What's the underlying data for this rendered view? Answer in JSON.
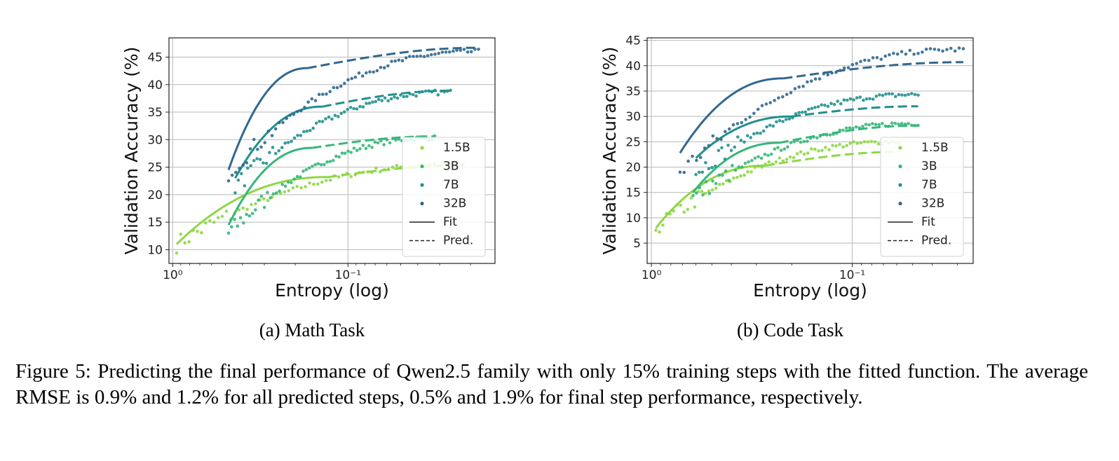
{
  "figure": {
    "caption": "Figure 5: Predicting the final performance of Qwen2.5 family with only 15% training steps with the fitted function. The average RMSE is 0.9% and 1.2% for all predicted steps, 0.5% and 1.9% for final step performance, respectively."
  },
  "colors": {
    "1.5B": "#8fd744",
    "3B": "#35b779",
    "7B": "#21908d",
    "32B": "#31688e"
  },
  "chart_data": [
    {
      "type": "scatter",
      "subtitle": "(a) Math Task",
      "xlabel": "Entropy (log)",
      "ylabel": "Validation Accuracy (%)",
      "x_scale": "log",
      "x_inverted": true,
      "xlim": [
        1.05,
        0.0145
      ],
      "ylim": [
        7.5,
        48.5
      ],
      "x_ticks": [
        {
          "value": 1,
          "label": "10⁰"
        },
        {
          "value": 0.1,
          "label": "10⁻¹"
        }
      ],
      "y_ticks": [
        10,
        15,
        20,
        25,
        30,
        35,
        40,
        45
      ],
      "grid": true,
      "legend": {
        "placement": "lower-right",
        "entries": [
          "1.5B",
          "3B",
          "7B",
          "32B",
          "Fit",
          "Pred."
        ]
      },
      "series": [
        {
          "name": "1.5B",
          "fit": {
            "x_range": [
              0.95,
              0.13
            ],
            "y": [
              11,
              23.2
            ]
          },
          "pred": {
            "x_range": [
              0.13,
              0.022
            ],
            "y": [
              23.2,
              25.3
            ]
          },
          "points_x_range": [
            0.95,
            0.022
          ],
          "points_y": [
            11,
            25.5
          ]
        },
        {
          "name": "3B",
          "fit": {
            "x_range": [
              0.48,
              0.16
            ],
            "y": [
              14.5,
              28.5
            ]
          },
          "pred": {
            "x_range": [
              0.16,
              0.032
            ],
            "y": [
              28.5,
              30.6
            ]
          },
          "points_x_range": [
            0.48,
            0.032
          ],
          "points_y": [
            13,
            30.3
          ]
        },
        {
          "name": "7B",
          "fit": {
            "x_range": [
              0.44,
              0.14
            ],
            "y": [
              23,
              36
            ]
          },
          "pred": {
            "x_range": [
              0.14,
              0.026
            ],
            "y": [
              36,
              38.9
            ]
          },
          "points_x_range": [
            0.44,
            0.026
          ],
          "points_y": [
            21.5,
            38.6
          ]
        },
        {
          "name": "32B",
          "fit": {
            "x_range": [
              0.48,
              0.17
            ],
            "y": [
              24.5,
              43
            ]
          },
          "pred": {
            "x_range": [
              0.17,
              0.018
            ],
            "y": [
              43,
              46.7
            ]
          },
          "points_x_range": [
            0.48,
            0.018
          ],
          "points_y": [
            24,
            46
          ]
        }
      ]
    },
    {
      "type": "scatter",
      "subtitle": "(b) Code Task",
      "xlabel": "Entropy (log)",
      "ylabel": "Validation Accuracy (%)",
      "x_scale": "log",
      "x_inverted": true,
      "xlim": [
        1.05,
        0.025
      ],
      "ylim": [
        1,
        45.5
      ],
      "x_ticks": [
        {
          "value": 1,
          "label": "10⁰"
        },
        {
          "value": 0.1,
          "label": "10⁻¹"
        }
      ],
      "y_ticks": [
        5,
        10,
        15,
        20,
        25,
        30,
        35,
        40,
        45
      ],
      "grid": true,
      "legend": {
        "placement": "lower-right",
        "entries": [
          "1.5B",
          "3B",
          "7B",
          "32B",
          "Fit",
          "Pred."
        ]
      },
      "series": [
        {
          "name": "1.5B",
          "fit": {
            "x_range": [
              0.95,
              0.27
            ],
            "y": [
              8,
              20.3
            ]
          },
          "pred": {
            "x_range": [
              0.27,
              0.058
            ],
            "y": [
              20.3,
              23
            ]
          },
          "points_x_range": [
            0.95,
            0.058
          ],
          "points_y": [
            8,
            25
          ]
        },
        {
          "name": "3B",
          "fit": {
            "x_range": [
              0.62,
              0.23
            ],
            "y": [
              15,
              24.8
            ]
          },
          "pred": {
            "x_range": [
              0.23,
              0.047
            ],
            "y": [
              24.8,
              28.2
            ]
          },
          "points_x_range": [
            0.62,
            0.047
          ],
          "points_y": [
            14,
            28.6
          ]
        },
        {
          "name": "7B",
          "fit": {
            "x_range": [
              0.6,
              0.2
            ],
            "y": [
              21.8,
              30
            ]
          },
          "pred": {
            "x_range": [
              0.2,
              0.047
            ],
            "y": [
              30,
              32
            ]
          },
          "points_x_range": [
            0.6,
            0.047
          ],
          "points_y": [
            19,
            34.3
          ]
        },
        {
          "name": "32B",
          "fit": {
            "x_range": [
              0.72,
              0.22
            ],
            "y": [
              22.8,
              37.5
            ]
          },
          "pred": {
            "x_range": [
              0.22,
              0.028
            ],
            "y": [
              37.5,
              40.7
            ]
          },
          "points_x_range": [
            0.72,
            0.028
          ],
          "points_y": [
            19,
            43.2
          ]
        }
      ]
    }
  ]
}
